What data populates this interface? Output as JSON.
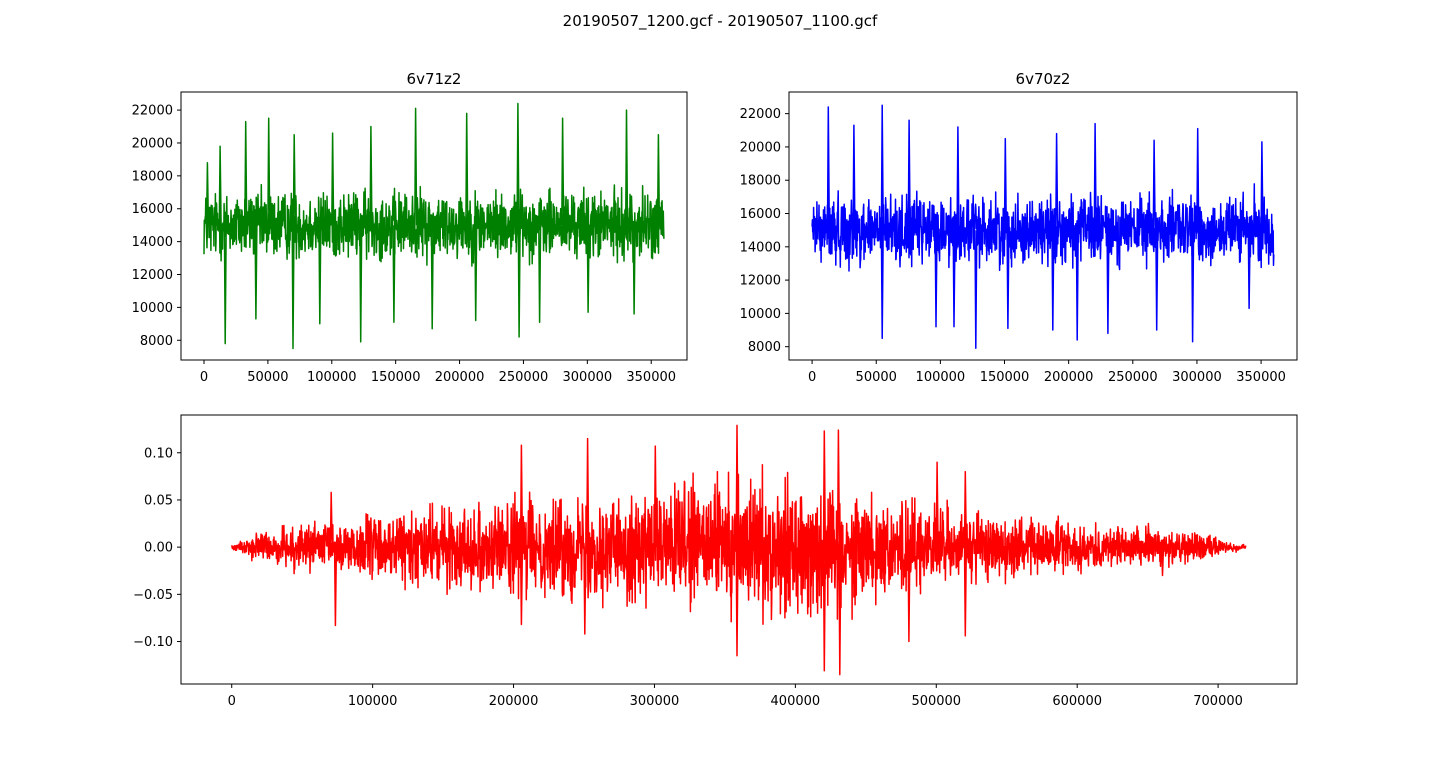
{
  "figure": {
    "suptitle": "20190507_1200.gcf - 20190507_1100.gcf"
  },
  "chart_data": [
    {
      "type": "line",
      "title": "6v71z2",
      "color": "#008000",
      "series": [
        {
          "style": "dense-noise",
          "n_samples": 360000,
          "baseline": 15000,
          "typical_range": [
            12500,
            17500
          ],
          "extremes": [
            7500,
            22400
          ]
        }
      ],
      "xlim": [
        -18000,
        378000
      ],
      "ylim": [
        6800,
        23100
      ],
      "xticks": [
        0,
        50000,
        100000,
        150000,
        200000,
        250000,
        300000,
        350000
      ],
      "yticks": [
        8000,
        10000,
        12000,
        14000,
        16000,
        18000,
        20000,
        22000
      ],
      "xtick_labels": [
        "0",
        "50000",
        "100000",
        "150000",
        "200000",
        "250000",
        "300000",
        "350000"
      ],
      "ytick_labels": [
        "8000",
        "10000",
        "12000",
        "14000",
        "16000",
        "18000",
        "20000",
        "22000"
      ],
      "peaks": [
        [
          2000,
          18800
        ],
        [
          12000,
          19800
        ],
        [
          32000,
          21300
        ],
        [
          50000,
          21500
        ],
        [
          70000,
          20500
        ],
        [
          100000,
          20600
        ],
        [
          130000,
          21000
        ],
        [
          165000,
          22100
        ],
        [
          205000,
          21800
        ],
        [
          245000,
          22400
        ],
        [
          280000,
          21500
        ],
        [
          330000,
          22000
        ],
        [
          355000,
          20500
        ]
      ],
      "troughs": [
        [
          16000,
          7800
        ],
        [
          40000,
          9300
        ],
        [
          69000,
          7500
        ],
        [
          90000,
          9000
        ],
        [
          122000,
          7900
        ],
        [
          148000,
          9100
        ],
        [
          178000,
          8700
        ],
        [
          212000,
          9200
        ],
        [
          246000,
          8200
        ],
        [
          262000,
          9100
        ],
        [
          300000,
          9700
        ],
        [
          336000,
          9600
        ]
      ]
    },
    {
      "type": "line",
      "title": "6v70z2",
      "color": "#0000ff",
      "series": [
        {
          "style": "dense-noise",
          "n_samples": 360000,
          "baseline": 15000,
          "typical_range": [
            12500,
            17500
          ],
          "extremes": [
            7900,
            22500
          ]
        }
      ],
      "xlim": [
        -18000,
        378000
      ],
      "ylim": [
        7200,
        23300
      ],
      "xticks": [
        0,
        50000,
        100000,
        150000,
        200000,
        250000,
        300000,
        350000
      ],
      "yticks": [
        8000,
        10000,
        12000,
        14000,
        16000,
        18000,
        20000,
        22000
      ],
      "xtick_labels": [
        "0",
        "50000",
        "100000",
        "150000",
        "200000",
        "250000",
        "300000",
        "350000"
      ],
      "ytick_labels": [
        "8000",
        "10000",
        "12000",
        "14000",
        "16000",
        "18000",
        "20000",
        "22000"
      ],
      "peaks": [
        [
          12000,
          22400
        ],
        [
          32000,
          21300
        ],
        [
          54000,
          22500
        ],
        [
          75000,
          21600
        ],
        [
          113000,
          21200
        ],
        [
          150000,
          20500
        ],
        [
          190000,
          20800
        ],
        [
          220000,
          21400
        ],
        [
          266000,
          20400
        ],
        [
          300000,
          21100
        ],
        [
          350000,
          20300
        ]
      ],
      "troughs": [
        [
          54000,
          8500
        ],
        [
          96000,
          9200
        ],
        [
          110000,
          9200
        ],
        [
          127000,
          7900
        ],
        [
          152000,
          9100
        ],
        [
          187000,
          9000
        ],
        [
          206000,
          8400
        ],
        [
          230000,
          8800
        ],
        [
          268000,
          9000
        ],
        [
          296000,
          8300
        ],
        [
          340000,
          10300
        ]
      ]
    },
    {
      "type": "line",
      "title": "",
      "color": "#ff0000",
      "series": [
        {
          "style": "dense-noise",
          "n_samples": 720000,
          "baseline": 0.0,
          "envelope": [
            [
              0,
              0.002
            ],
            [
              20000,
              0.02
            ],
            [
              60000,
              0.03
            ],
            [
              100000,
              0.04
            ],
            [
              200000,
              0.06
            ],
            [
              300000,
              0.07
            ],
            [
              360000,
              0.09
            ],
            [
              420000,
              0.08
            ],
            [
              500000,
              0.05
            ],
            [
              600000,
              0.03
            ],
            [
              680000,
              0.02
            ],
            [
              720000,
              0.002
            ]
          ]
        }
      ],
      "xlim": [
        -36000,
        756000
      ],
      "ylim": [
        -0.145,
        0.14
      ],
      "xticks": [
        0,
        100000,
        200000,
        300000,
        400000,
        500000,
        600000,
        700000
      ],
      "yticks": [
        -0.1,
        -0.05,
        0.0,
        0.05,
        0.1
      ],
      "xtick_labels": [
        "0",
        "100000",
        "200000",
        "300000",
        "400000",
        "500000",
        "600000",
        "700000"
      ],
      "ytick_labels": [
        "−0.10",
        "−0.05",
        "0.00",
        "0.05",
        "0.10"
      ],
      "peaks": [
        [
          70000,
          0.058
        ],
        [
          205000,
          0.108
        ],
        [
          252000,
          0.115
        ],
        [
          300000,
          0.107
        ],
        [
          358000,
          0.129
        ],
        [
          420000,
          0.123
        ],
        [
          430000,
          0.124
        ],
        [
          500000,
          0.09
        ],
        [
          520000,
          0.08
        ],
        [
          650000,
          0.025
        ]
      ],
      "troughs": [
        [
          73000,
          -0.083
        ],
        [
          205000,
          -0.082
        ],
        [
          250000,
          -0.092
        ],
        [
          358000,
          -0.115
        ],
        [
          420000,
          -0.131
        ],
        [
          431000,
          -0.135
        ],
        [
          480000,
          -0.1
        ],
        [
          520000,
          -0.094
        ],
        [
          660000,
          -0.03
        ]
      ]
    }
  ]
}
